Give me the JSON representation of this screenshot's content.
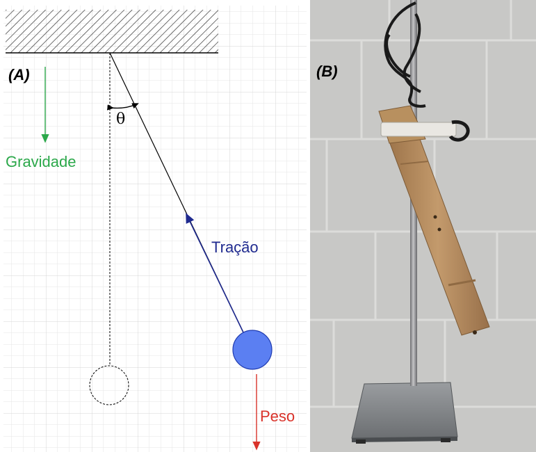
{
  "panels": {
    "a_label": "(A)",
    "b_label": "(B)"
  },
  "diagram": {
    "gravity_label": "Gravidade",
    "tension_label": "Tração",
    "weight_label": "Peso",
    "angle_label": "θ",
    "colors": {
      "gravity": "#2ba84a",
      "tension": "#1f2a8f",
      "weight": "#d9322a",
      "bob_fill": "#5b7ff2",
      "bob_stroke": "#1f3bb0",
      "grid": "#dedede",
      "ceiling_hatch": "#333333"
    }
  },
  "photo": {
    "description_icon": "pendulum-apparatus-photo",
    "colors": {
      "wall": "#c9c9c7",
      "mortar": "#dadad8",
      "rod": "#8e8e90",
      "tube": "#b58a5c",
      "tube_shadow": "#8f6a43",
      "base": "#7d8083",
      "cable": "#1a1a1a"
    }
  }
}
